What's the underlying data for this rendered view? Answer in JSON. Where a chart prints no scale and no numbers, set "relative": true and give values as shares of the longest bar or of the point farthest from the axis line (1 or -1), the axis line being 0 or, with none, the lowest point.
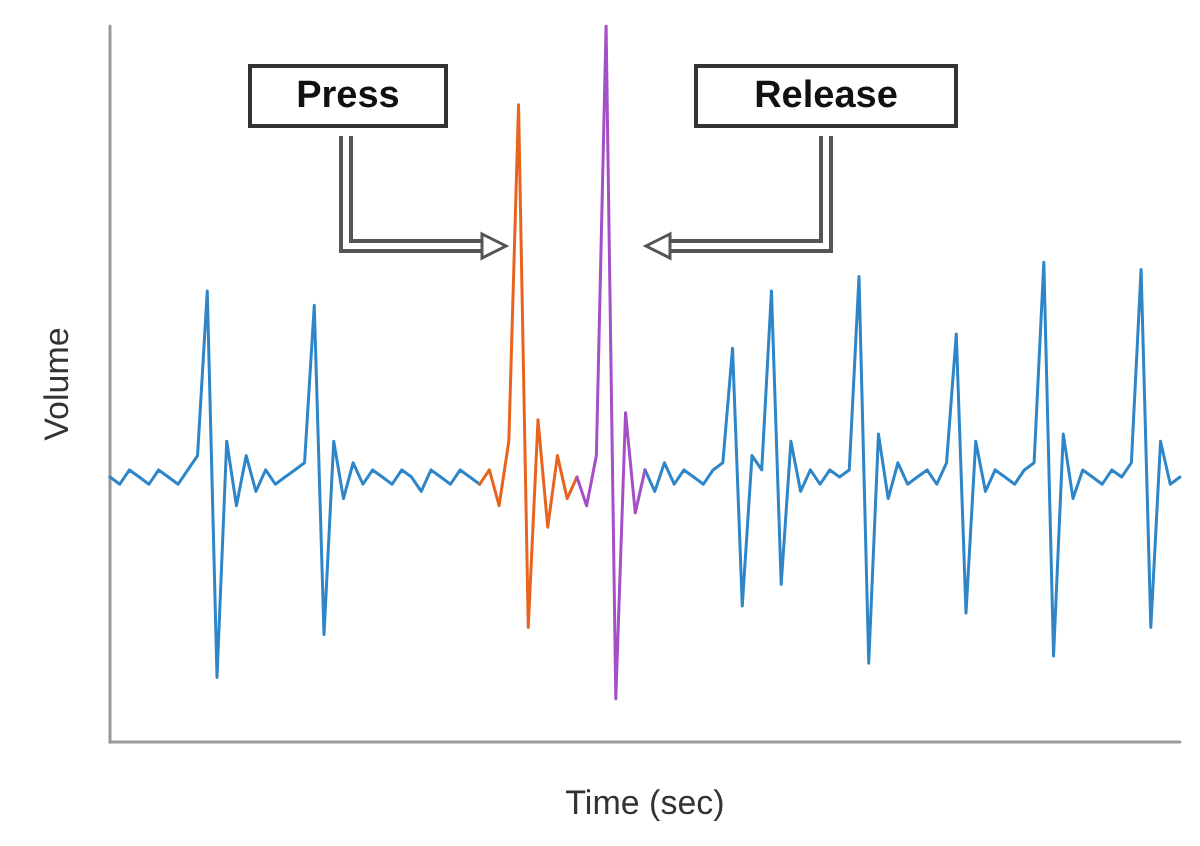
{
  "chart_data": {
    "type": "line",
    "relative": true,
    "xlabel": "Time (sec)",
    "ylabel": "Volume",
    "annotations": [
      "Press",
      "Release"
    ],
    "tick_labels": false,
    "grid": false,
    "line_style": "solid",
    "categories": [
      null,
      null,
      null,
      null,
      null,
      null,
      null,
      null,
      null,
      null,
      null,
      null,
      null,
      null,
      null,
      null,
      null,
      null,
      null,
      null,
      null,
      null,
      null,
      null,
      null,
      null,
      null,
      null,
      null,
      null,
      null,
      null,
      null,
      null,
      null,
      null,
      null,
      null,
      null,
      null,
      null,
      null,
      null,
      null,
      null,
      null,
      null,
      null,
      null,
      null,
      null,
      null,
      null,
      null,
      null,
      null,
      null,
      null,
      null,
      null,
      null,
      null,
      null,
      null,
      null,
      null,
      null,
      null,
      null,
      null,
      null,
      null,
      null,
      null,
      null,
      null,
      null,
      null,
      null,
      null,
      null,
      null,
      null,
      null,
      null,
      null,
      null,
      null,
      null,
      null,
      null,
      null,
      null,
      null,
      null,
      null,
      null,
      null,
      null,
      null,
      null,
      null,
      null,
      null,
      null,
      null,
      null,
      null,
      null,
      null,
      null
    ],
    "series": [
      {
        "color": "#2e86c8",
        "values": [
          0.37,
          0.36,
          0.38,
          0.37,
          0.36,
          0.38,
          0.37,
          0.36,
          0.38,
          0.4,
          0.63,
          0.09,
          0.42,
          0.33,
          0.4,
          0.35,
          0.38,
          0.36,
          0.37,
          0.38,
          0.39,
          0.61,
          0.15,
          0.42,
          0.34,
          0.39,
          0.36,
          0.38,
          0.37,
          0.36,
          0.38,
          0.37,
          0.35,
          0.38,
          0.37,
          0.36,
          0.38,
          0.37,
          0.36,
          null,
          null,
          null,
          null,
          null,
          null,
          null,
          null,
          null,
          null,
          null,
          null,
          null,
          null,
          null,
          null,
          0.38,
          0.35,
          0.39,
          0.36,
          0.38,
          0.37,
          0.36,
          0.38,
          0.39,
          0.55,
          0.19,
          0.4,
          0.38,
          0.63,
          0.22,
          0.42,
          0.35,
          0.38,
          0.36,
          0.38,
          0.37,
          0.38,
          0.65,
          0.11,
          0.43,
          0.34,
          0.39,
          0.36,
          0.37,
          0.38,
          0.36,
          0.39,
          0.57,
          0.18,
          0.42,
          0.35,
          0.38,
          0.37,
          0.36,
          0.38,
          0.39,
          0.67,
          0.12,
          0.43,
          0.34,
          0.38,
          0.37,
          0.36,
          0.38,
          0.37,
          0.39,
          0.66,
          0.16,
          0.42,
          0.36,
          0.37
        ]
      },
      {
        "color": "#e8641e",
        "values": [
          null,
          null,
          null,
          null,
          null,
          null,
          null,
          null,
          null,
          null,
          null,
          null,
          null,
          null,
          null,
          null,
          null,
          null,
          null,
          null,
          null,
          null,
          null,
          null,
          null,
          null,
          null,
          null,
          null,
          null,
          null,
          null,
          null,
          null,
          null,
          null,
          null,
          null,
          0.36,
          0.38,
          0.33,
          0.42,
          0.89,
          0.16,
          0.45,
          0.3,
          0.4,
          0.34,
          0.37,
          null,
          null,
          null,
          null,
          null,
          null,
          null,
          null,
          null,
          null,
          null,
          null,
          null,
          null,
          null,
          null,
          null,
          null,
          null,
          null,
          null,
          null,
          null,
          null,
          null,
          null,
          null,
          null,
          null,
          null,
          null,
          null,
          null,
          null,
          null,
          null,
          null,
          null,
          null,
          null,
          null,
          null,
          null,
          null,
          null,
          null,
          null,
          null,
          null,
          null,
          null,
          null,
          null,
          null,
          null,
          null,
          null,
          null,
          null,
          null,
          null,
          null
        ]
      },
      {
        "color": "#a44fc8",
        "values": [
          null,
          null,
          null,
          null,
          null,
          null,
          null,
          null,
          null,
          null,
          null,
          null,
          null,
          null,
          null,
          null,
          null,
          null,
          null,
          null,
          null,
          null,
          null,
          null,
          null,
          null,
          null,
          null,
          null,
          null,
          null,
          null,
          null,
          null,
          null,
          null,
          null,
          null,
          null,
          null,
          null,
          null,
          null,
          null,
          null,
          null,
          null,
          null,
          0.37,
          0.33,
          0.4,
          1.0,
          0.06,
          0.46,
          0.32,
          0.38,
          null,
          null,
          null,
          null,
          null,
          null,
          null,
          null,
          null,
          null,
          null,
          null,
          null,
          null,
          null,
          null,
          null,
          null,
          null,
          null,
          null,
          null,
          null,
          null,
          null,
          null,
          null,
          null,
          null,
          null,
          null,
          null,
          null,
          null,
          null,
          null,
          null,
          null,
          null,
          null,
          null,
          null,
          null,
          null,
          null,
          null,
          null,
          null,
          null,
          null,
          null,
          null,
          null,
          null,
          null
        ]
      }
    ]
  }
}
